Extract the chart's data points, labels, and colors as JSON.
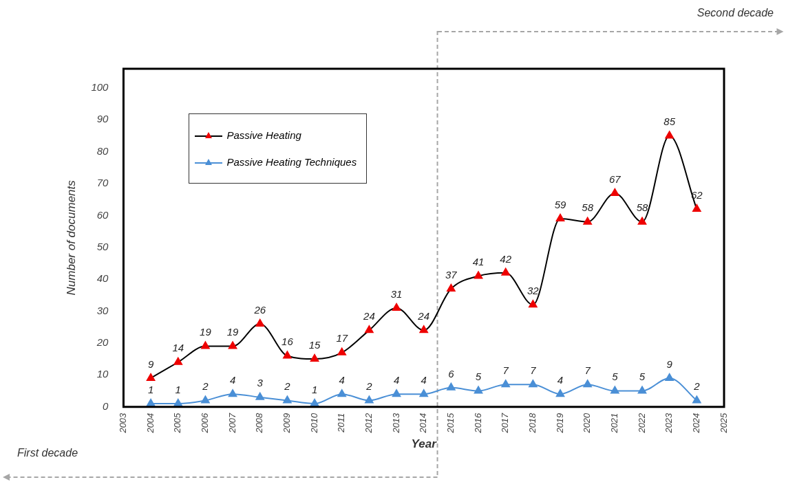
{
  "chart_data": {
    "type": "line",
    "xlabel": "Year",
    "ylabel": "Number of documents",
    "x": [
      2004,
      2005,
      2006,
      2007,
      2008,
      2009,
      2010,
      2011,
      2012,
      2013,
      2014,
      2015,
      2016,
      2017,
      2018,
      2019,
      2020,
      2021,
      2022,
      2023,
      2024
    ],
    "series": [
      {
        "name": "Passive Heating",
        "color": "#000000",
        "values": [
          9,
          14,
          19,
          19,
          26,
          16,
          15,
          17,
          24,
          31,
          24,
          37,
          41,
          42,
          32,
          59,
          58,
          67,
          58,
          85,
          62
        ]
      },
      {
        "name": "Passive Heating Techniques",
        "color": "#4a8fd6",
        "values": [
          1,
          1,
          2,
          4,
          3,
          2,
          1,
          4,
          2,
          4,
          4,
          6,
          5,
          7,
          7,
          4,
          7,
          5,
          5,
          9,
          2
        ]
      }
    ],
    "xlim": [
      2003,
      2025
    ],
    "xticks": [
      2003,
      2004,
      2005,
      2006,
      2007,
      2008,
      2009,
      2010,
      2011,
      2012,
      2013,
      2014,
      2015,
      2016,
      2017,
      2018,
      2019,
      2020,
      2021,
      2022,
      2023,
      2024,
      2025
    ],
    "ylim": [
      0,
      106
    ],
    "yticks": [
      0,
      10,
      20,
      30,
      40,
      50,
      60,
      70,
      80,
      90,
      100
    ],
    "grid": false,
    "legend": "top left",
    "marker": "triangle",
    "data_labels": true,
    "ref_lines": [
      {
        "axis": "x",
        "value": 2014.5,
        "color": "#a6a6a6",
        "line_style": "dashed"
      }
    ],
    "annotations": [
      "Second decade",
      "First decade"
    ]
  }
}
